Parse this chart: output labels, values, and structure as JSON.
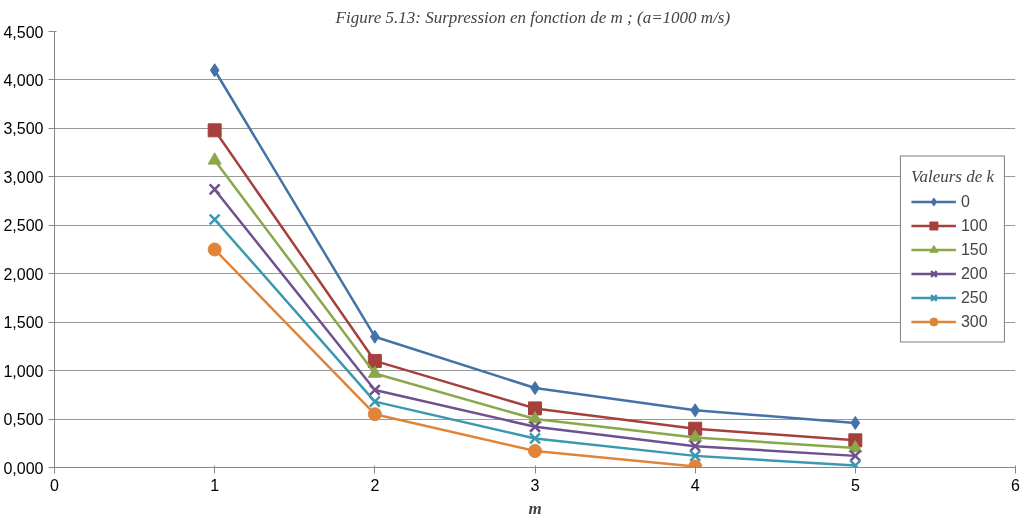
{
  "chart_data": {
    "type": "line",
    "title": "Figure 5.13:  Surpression en fonction de m ; (a=1000 m/s)",
    "xlabel": "m",
    "legend_title": "Valeurs de k",
    "x": [
      1,
      2,
      3,
      4,
      5
    ],
    "series": [
      {
        "name": "0",
        "color": "#4472a8",
        "marker": "diamond",
        "values": [
          4.1,
          1.35,
          0.82,
          0.59,
          0.46
        ]
      },
      {
        "name": "100",
        "color": "#a5403c",
        "marker": "square",
        "values": [
          3.48,
          1.1,
          0.61,
          0.4,
          0.28
        ]
      },
      {
        "name": "150",
        "color": "#8aa84a",
        "marker": "triangle",
        "values": [
          3.17,
          0.97,
          0.5,
          0.31,
          0.2
        ]
      },
      {
        "name": "200",
        "color": "#6f5191",
        "marker": "cross",
        "values": [
          2.87,
          0.8,
          0.42,
          0.22,
          0.12
        ]
      },
      {
        "name": "250",
        "color": "#3b98b1",
        "marker": "cross",
        "values": [
          2.56,
          0.68,
          0.3,
          0.12,
          0.02
        ]
      },
      {
        "name": "300",
        "color": "#e0843a",
        "marker": "circle",
        "values": [
          2.25,
          0.55,
          0.17,
          0.01,
          null
        ]
      }
    ],
    "xlim": [
      0,
      6
    ],
    "xticks": [
      0,
      1,
      2,
      3,
      4,
      5,
      6
    ],
    "ylim": [
      0,
      4.5
    ],
    "yticks": [
      {
        "value": 0,
        "label": "0,000"
      },
      {
        "value": 0.5,
        "label": "0,500"
      },
      {
        "value": 1,
        "label": "1,000"
      },
      {
        "value": 1.5,
        "label": "1,500"
      },
      {
        "value": 2,
        "label": "2,000"
      },
      {
        "value": 2.5,
        "label": "2,500"
      },
      {
        "value": 3,
        "label": "3,000"
      },
      {
        "value": 3.5,
        "label": "3,500"
      },
      {
        "value": 4,
        "label": "4,000"
      },
      {
        "value": 4.5,
        "label": "4,500"
      }
    ],
    "grid": "y",
    "legend": "right"
  }
}
